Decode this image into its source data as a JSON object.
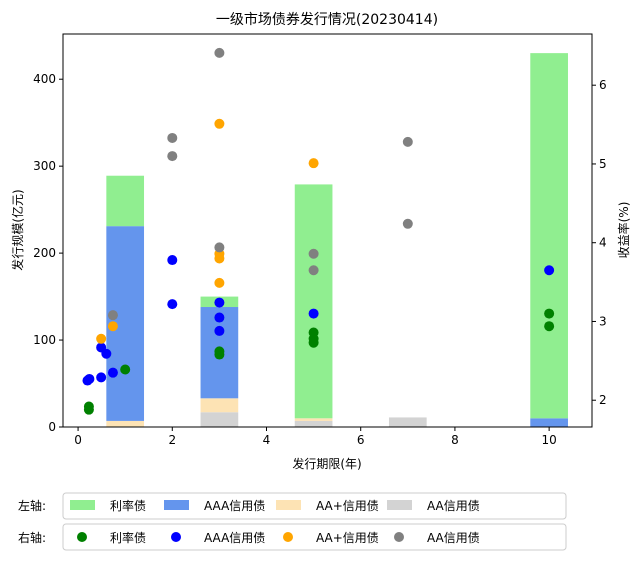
{
  "chart_data": {
    "type": "bar+scatter",
    "title": "一级市场债券发行情况(20230414)",
    "xlabel": "发行期限(年)",
    "ylabel_left": "发行规模(亿元)",
    "ylabel_right": "收益率(%)",
    "xlim": [
      -0.32,
      10.91
    ],
    "ylim_left": [
      0,
      452
    ],
    "ylim_right": [
      1.66,
      6.65
    ],
    "x_ticks": [
      0,
      2,
      4,
      6,
      8,
      10
    ],
    "y_left_ticks": [
      0,
      100,
      200,
      300,
      400
    ],
    "y_right_ticks": [
      2,
      3,
      4,
      5,
      6
    ],
    "grid": false,
    "legend_placement": "bottom",
    "bar_categories_x": [
      1,
      3,
      5,
      7,
      10
    ],
    "bar_width": 0.8,
    "bar_series": [
      {
        "name": "AA信用债",
        "color": "#d3d3d3",
        "values": [
          0,
          17,
          7,
          11,
          0
        ]
      },
      {
        "name": "AA+信用债",
        "color": "#fde3b4",
        "values": [
          7,
          16,
          3,
          0,
          0
        ]
      },
      {
        "name": "AAA信用债",
        "color": "#6495ed",
        "values": [
          224,
          105,
          0,
          0,
          10
        ]
      },
      {
        "name": "利率债",
        "color": "#90ee90",
        "values": [
          58,
          12,
          269,
          0,
          420
        ]
      }
    ],
    "scatter_series": [
      {
        "name": "利率债",
        "color": "#008000",
        "points": [
          [
            0.23,
            1.88
          ],
          [
            0.23,
            1.92
          ],
          [
            1.0,
            2.39
          ],
          [
            3,
            2.62
          ],
          [
            3,
            2.58
          ],
          [
            5,
            2.86
          ],
          [
            5,
            2.78
          ],
          [
            5,
            2.73
          ],
          [
            10,
            3.1
          ],
          [
            10,
            2.94
          ]
        ]
      },
      {
        "name": "AAA信用债",
        "color": "#0000ff",
        "points": [
          [
            0.2,
            2.25
          ],
          [
            0.24,
            2.27
          ],
          [
            0.49,
            2.29
          ],
          [
            0.49,
            2.67
          ],
          [
            0.6,
            2.59
          ],
          [
            0.74,
            2.35
          ],
          [
            2,
            3.78
          ],
          [
            2,
            3.22
          ],
          [
            3,
            3.24
          ],
          [
            3,
            3.05
          ],
          [
            3,
            2.88
          ],
          [
            5,
            3.1
          ],
          [
            10,
            3.65
          ]
        ]
      },
      {
        "name": "AA+信用债",
        "color": "#ffa500",
        "points": [
          [
            0.49,
            2.78
          ],
          [
            0.74,
            2.94
          ],
          [
            3,
            5.51
          ],
          [
            3,
            3.86
          ],
          [
            3,
            3.8
          ],
          [
            3,
            3.49
          ],
          [
            5,
            5.01
          ]
        ]
      },
      {
        "name": "AA信用债",
        "color": "#808080",
        "points": [
          [
            0.74,
            3.08
          ],
          [
            2,
            5.33
          ],
          [
            2,
            5.1
          ],
          [
            3,
            6.41
          ],
          [
            3,
            3.94
          ],
          [
            5,
            3.86
          ],
          [
            5,
            3.65
          ],
          [
            7,
            5.28
          ],
          [
            7,
            4.24
          ]
        ]
      }
    ]
  },
  "legend": {
    "left_axis_label": "左轴:",
    "right_axis_label": "右轴:",
    "items": [
      "利率债",
      "AAA信用债",
      "AA+信用债",
      "AA信用债"
    ],
    "bar_colors": [
      "#90ee90",
      "#6495ed",
      "#fde3b4",
      "#d3d3d3"
    ],
    "dot_colors": [
      "#008000",
      "#0000ff",
      "#ffa500",
      "#808080"
    ]
  }
}
